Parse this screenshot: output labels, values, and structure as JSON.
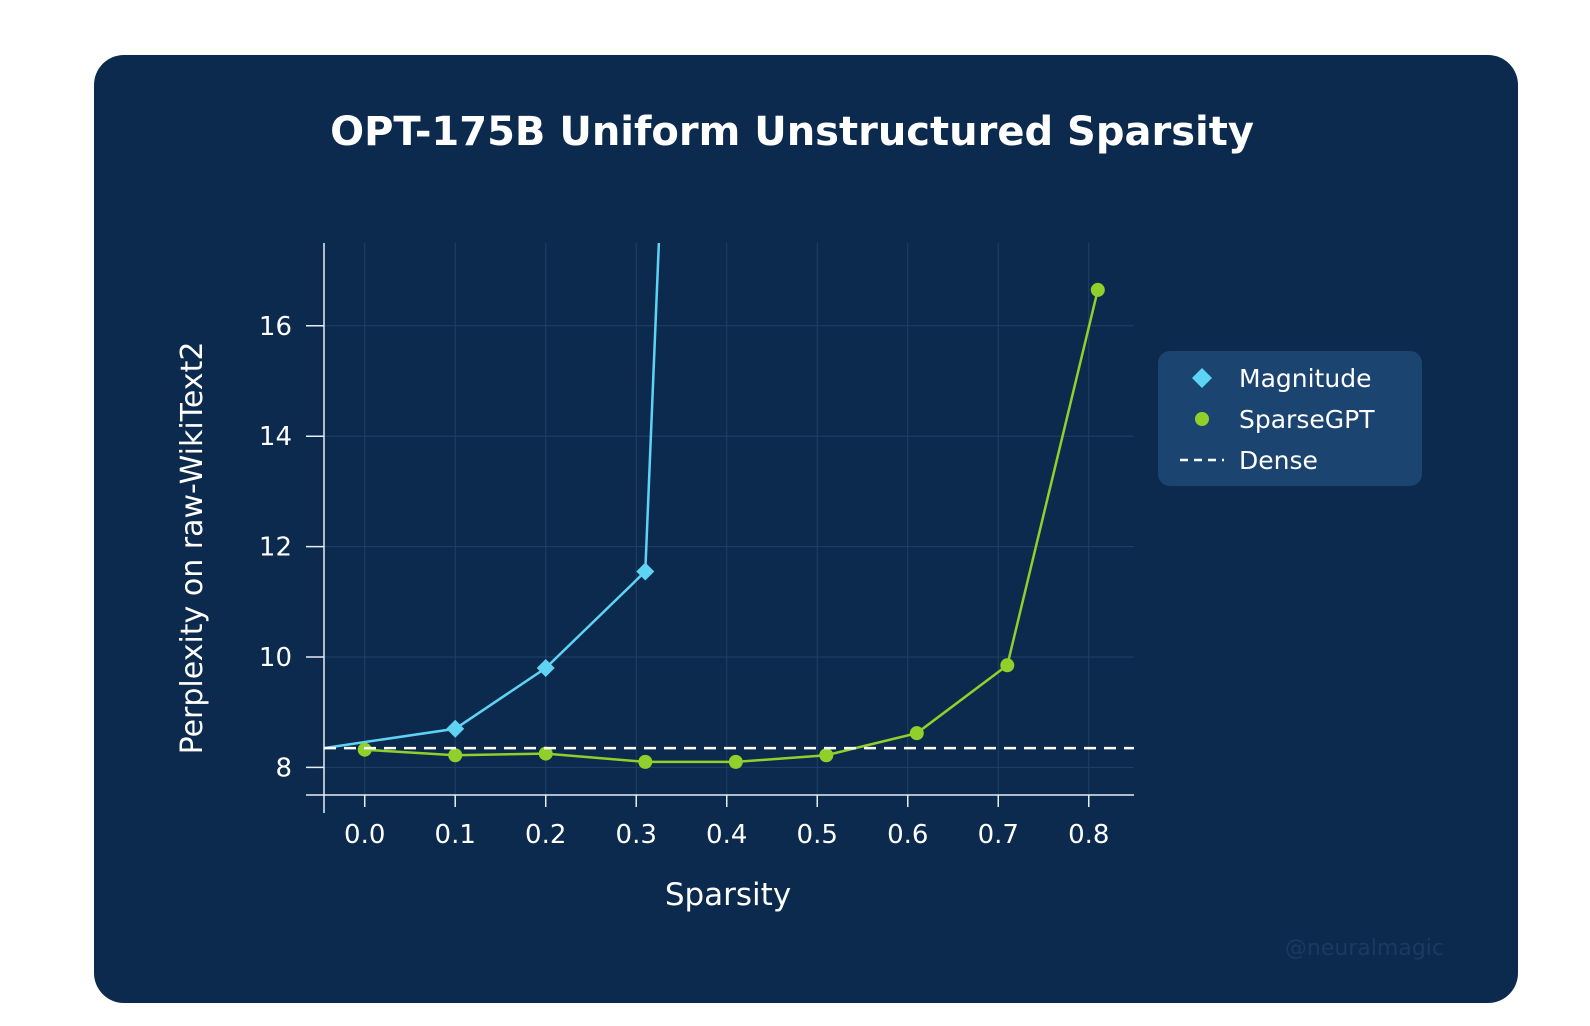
{
  "chart_data": {
    "type": "line",
    "title": "OPT-175B Uniform Unstructured Sparsity",
    "xlabel": "Sparsity",
    "ylabel": "Perplexity on raw-WikiText2",
    "xlim": [
      -0.045,
      0.85
    ],
    "ylim": [
      7.5,
      17.5
    ],
    "x_ticks": [
      "0.0",
      "0.1",
      "0.2",
      "0.3",
      "0.4",
      "0.5",
      "0.6",
      "0.7",
      "0.8"
    ],
    "y_ticks": [
      "8",
      "10",
      "12",
      "14",
      "16"
    ],
    "grid": true,
    "legend_position": "right",
    "series": [
      {
        "name": "Magnitude",
        "marker": "diamond",
        "color": "#5fd3f3",
        "x": [
          -0.045,
          0.1,
          0.2,
          0.31
        ],
        "y": [
          8.35,
          8.7,
          9.8,
          11.55
        ],
        "continues_offscale_to": {
          "x": 0.325,
          "y": 17.5
        }
      },
      {
        "name": "SparseGPT",
        "marker": "circle",
        "color": "#8fd12a",
        "x": [
          0.0,
          0.1,
          0.2,
          0.31,
          0.41,
          0.51,
          0.61,
          0.71,
          0.81
        ],
        "y": [
          8.32,
          8.22,
          8.25,
          8.1,
          8.1,
          8.22,
          8.62,
          9.85,
          16.65
        ]
      },
      {
        "name": "Dense",
        "line_style": "dashed",
        "color": "#ffffff",
        "y": 8.35
      }
    ],
    "watermark": "@neuralmagic"
  }
}
